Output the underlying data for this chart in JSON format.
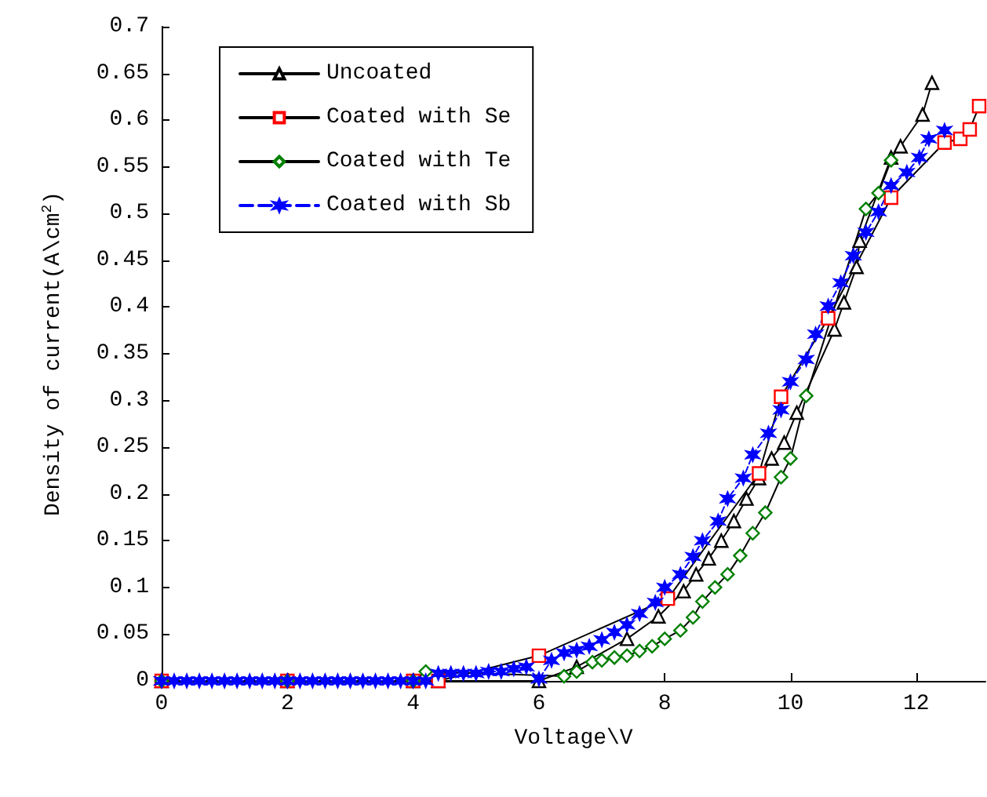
{
  "chart_data": {
    "type": "line",
    "xlabel": "Voltage\\V",
    "ylabel": "Density of current(A\\cm$^{2}$)",
    "xlim": [
      0,
      13.1
    ],
    "xticks": [
      0,
      2,
      4,
      6,
      8,
      10,
      12
    ],
    "ylim": [
      0,
      0.7
    ],
    "yticks": [
      0,
      0.05,
      0.1,
      0.15,
      0.2,
      0.25,
      0.3,
      0.35,
      0.4,
      0.45,
      0.5,
      0.55,
      0.6,
      0.65,
      0.7
    ],
    "grid": false,
    "legend": "top left",
    "series": [
      {
        "name": "Uncoated",
        "color": "#000000",
        "marker": "triangle",
        "line_style": "solid",
        "x": [
          0,
          2,
          4,
          4.4,
          6,
          6.6,
          7.4,
          7.9,
          8.3,
          8.5,
          8.7,
          8.9,
          9.1,
          9.3,
          9.5,
          9.7,
          9.9,
          10.1,
          10.7,
          10.85,
          11.05,
          11.1,
          11.6,
          11.75,
          12.1,
          12.25
        ],
        "values": [
          0,
          0,
          0,
          0,
          0,
          0.015,
          0.045,
          0.069,
          0.096,
          0.114,
          0.131,
          0.15,
          0.171,
          0.195,
          0.217,
          0.238,
          0.255,
          0.287,
          0.376,
          0.405,
          0.443,
          0.471,
          0.56,
          0.572,
          0.606,
          0.64
        ]
      },
      {
        "name": "Coated with Se",
        "color": "#ff0000",
        "marker": "square",
        "line_style": "solid",
        "x": [
          0,
          2,
          4,
          4.4,
          6,
          8.05,
          9.5,
          9.85,
          10.6,
          11.6,
          12.45,
          12.7,
          12.85,
          13
        ],
        "values": [
          0,
          0,
          0,
          0,
          0.027,
          0.088,
          0.222,
          0.304,
          0.388,
          0.517,
          0.576,
          0.58,
          0.59,
          0.615
        ]
      },
      {
        "name": "Coated with Te",
        "color": "#008000",
        "marker": "diamond",
        "line_style": "solid",
        "x": [
          0,
          2,
          4,
          4.2,
          6.4,
          6.6,
          6.85,
          7,
          7.2,
          7.4,
          7.6,
          7.8,
          8,
          8.25,
          8.45,
          8.6,
          8.8,
          9,
          9.2,
          9.4,
          9.6,
          9.85,
          10,
          10.25,
          11.2,
          11.4,
          11.6
        ],
        "values": [
          0,
          0,
          0,
          0.01,
          0.005,
          0.01,
          0.02,
          0.022,
          0.025,
          0.027,
          0.032,
          0.037,
          0.045,
          0.054,
          0.068,
          0.085,
          0.1,
          0.114,
          0.134,
          0.158,
          0.18,
          0.218,
          0.238,
          0.305,
          0.505,
          0.522,
          0.557
        ]
      },
      {
        "name": "Coated with Sb",
        "color": "#0000ff",
        "marker": "cross",
        "line_style": "dashed",
        "x": [
          0,
          0.2,
          0.4,
          0.6,
          0.8,
          1,
          1.2,
          1.4,
          1.6,
          1.8,
          2,
          2.2,
          2.4,
          2.6,
          2.8,
          3,
          3.2,
          3.4,
          3.6,
          3.8,
          4,
          4.2,
          4.4,
          4.6,
          4.8,
          5,
          5.2,
          5.4,
          5.6,
          5.8,
          6,
          6.2,
          6.4,
          6.6,
          6.8,
          7,
          7.2,
          7.4,
          7.6,
          7.85,
          8,
          8.25,
          8.45,
          8.6,
          8.85,
          9,
          9.25,
          9.4,
          9.65,
          9.85,
          10,
          10.25,
          10.4,
          10.6,
          10.8,
          11,
          11.2,
          11.4,
          11.6,
          11.85,
          12.05,
          12.2,
          12.45
        ],
        "values": [
          0,
          0,
          0,
          0,
          0,
          0,
          0,
          0,
          0,
          0,
          0,
          0,
          0,
          0,
          0,
          0,
          0,
          0,
          0,
          0,
          0,
          0,
          0.008,
          0.008,
          0.008,
          0.008,
          0.01,
          0.01,
          0.013,
          0.015,
          0.002,
          0.022,
          0.03,
          0.033,
          0.037,
          0.044,
          0.052,
          0.06,
          0.072,
          0.084,
          0.1,
          0.114,
          0.133,
          0.15,
          0.171,
          0.195,
          0.217,
          0.242,
          0.265,
          0.29,
          0.32,
          0.344,
          0.371,
          0.401,
          0.426,
          0.455,
          0.48,
          0.502,
          0.53,
          0.544,
          0.56,
          0.58,
          0.589
        ]
      }
    ]
  }
}
